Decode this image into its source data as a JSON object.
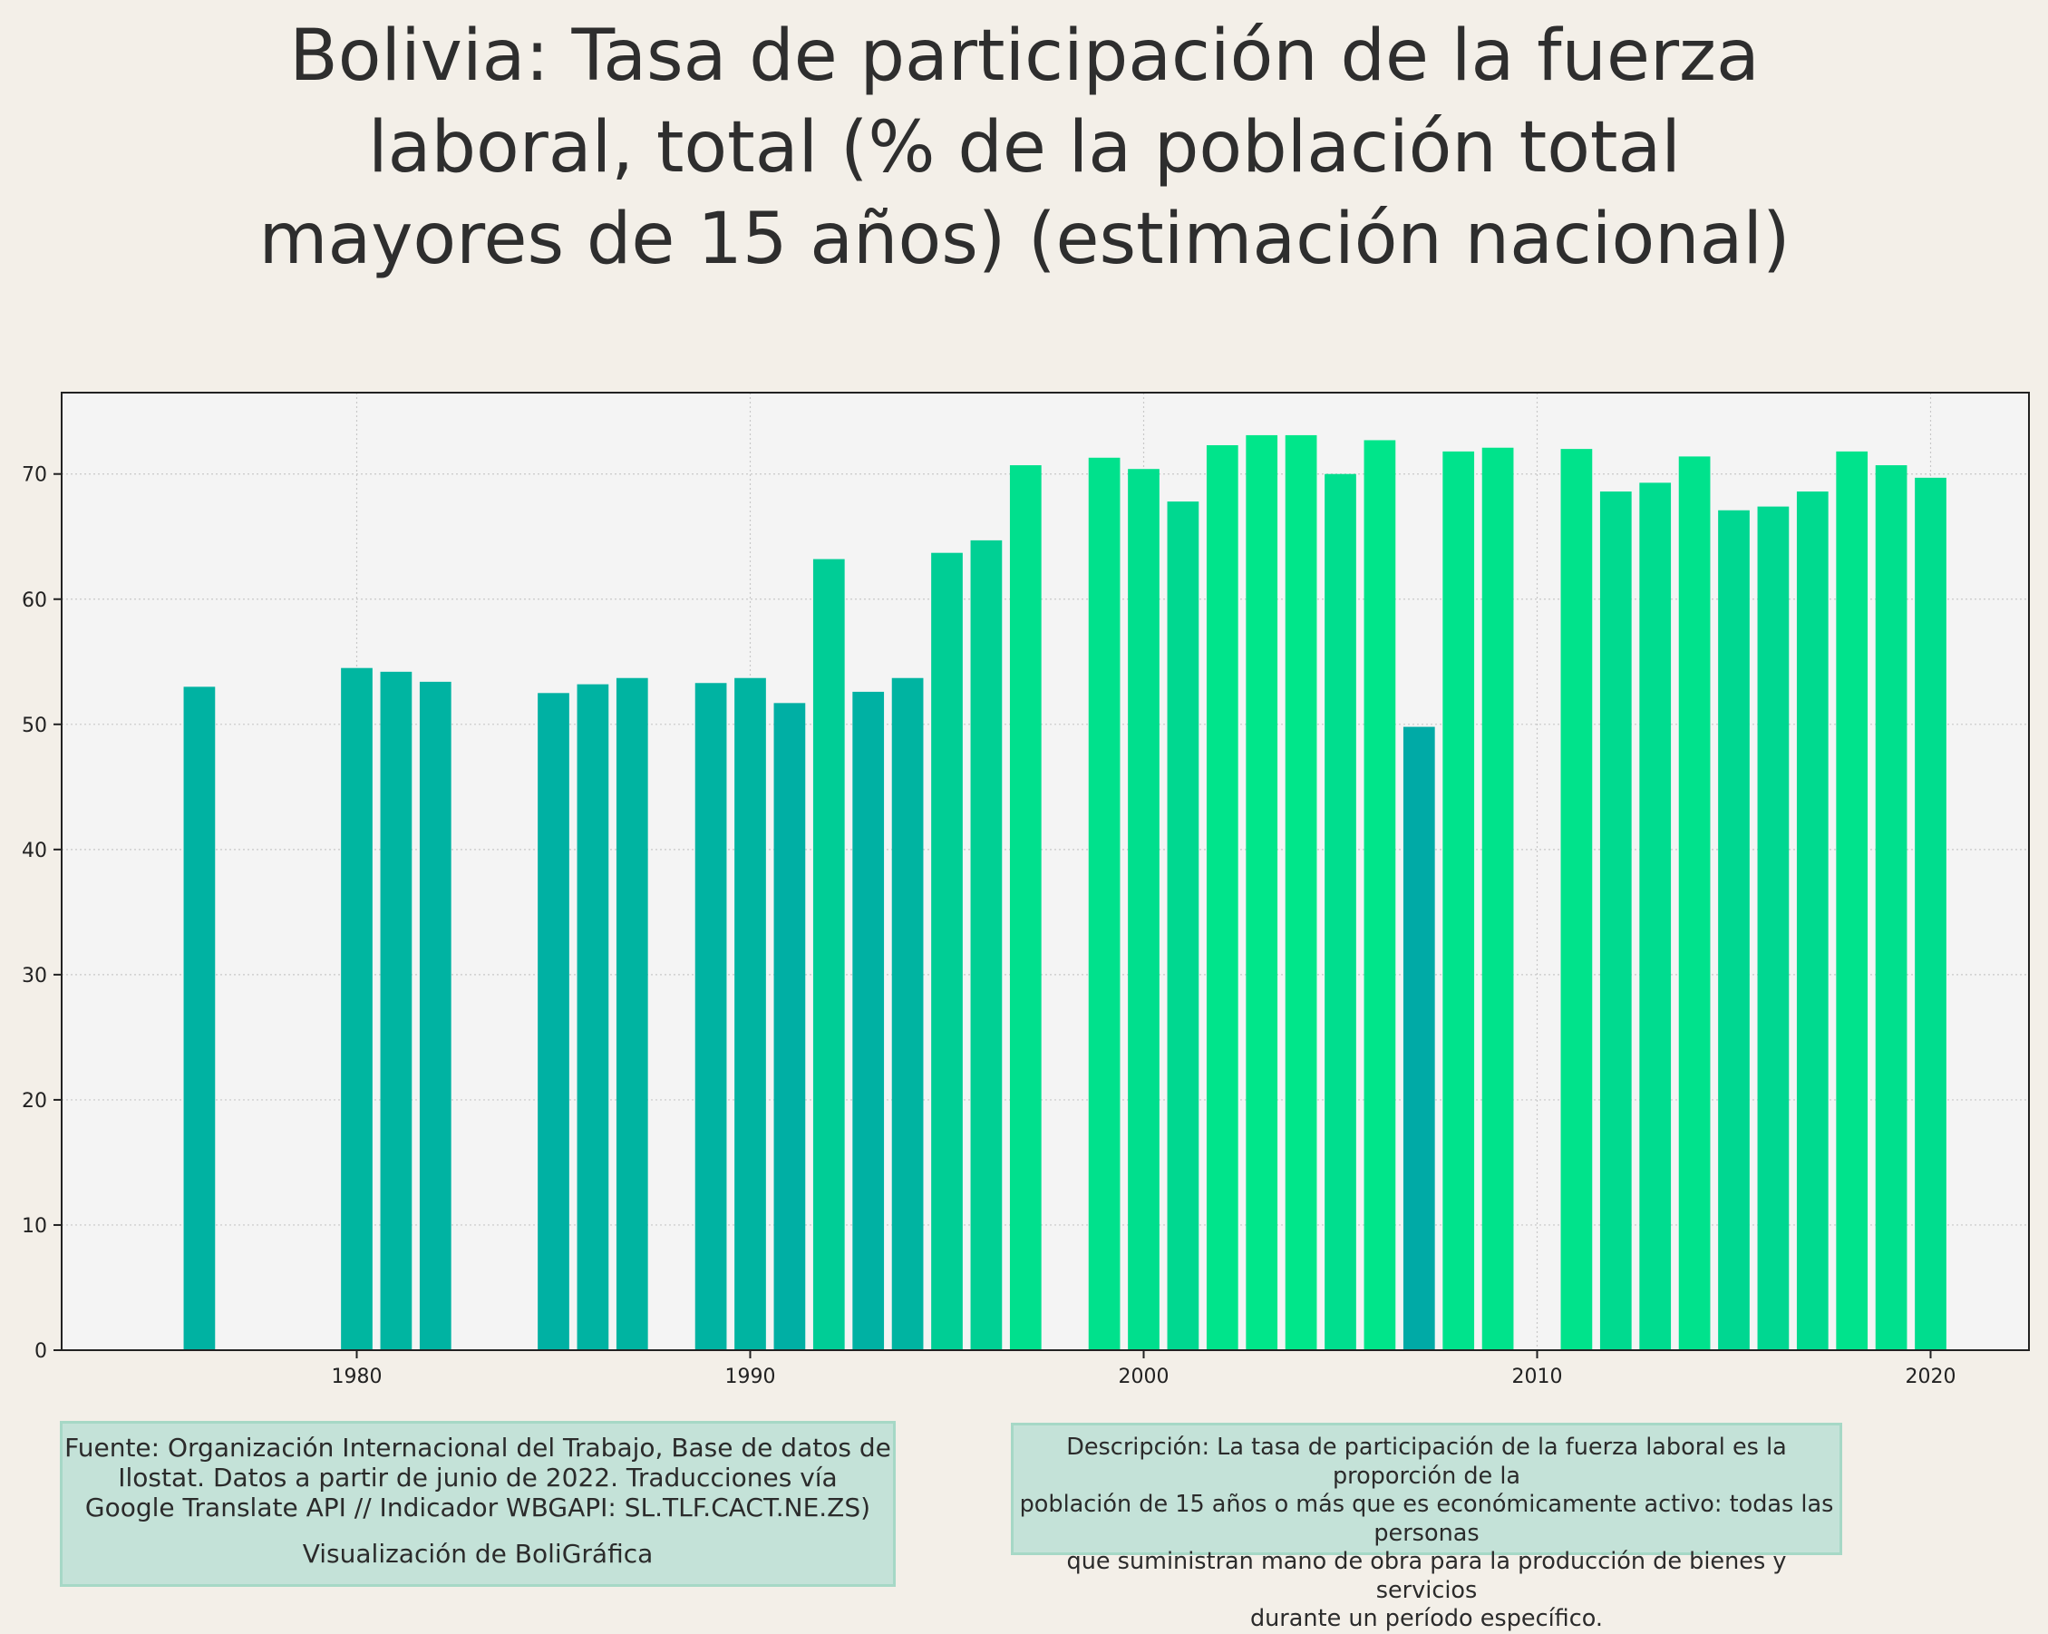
{
  "title_lines": [
    "Bolivia:  Tasa de participación de la fuerza",
    "laboral, total (% de la población total",
    "mayores de 15 años) (estimación nacional)"
  ],
  "source": {
    "lines": [
      "Fuente: Organización Internacional del Trabajo, Base de datos de",
      "Ilostat. Datos a partir de junio de 2022. Traducciones vía",
      "Google Translate API // Indicador WBGAPI: SL.TLF.CACT.NE.ZS)"
    ],
    "credit": "Visualización de BoliGráfica"
  },
  "description": {
    "lines": [
      "Descripción: La tasa de participación de la fuerza laboral es la proporción de la",
      "población de 15 años o más que es económicamente activo: todas las personas",
      "que suministran mano de obra para la producción de bienes y servicios",
      "durante un período específico."
    ]
  },
  "colors": {
    "background": "#f3efe8",
    "plot_background": "#f4f4f4",
    "bar_low": "#00aaa6",
    "bar_high": "#00e68a",
    "grid": "#c8c8c8",
    "note_background": "#c4e2d8",
    "note_border": "#a6d8c6"
  },
  "chart_data": {
    "type": "bar",
    "title": "Bolivia:  Tasa de participación de la fuerza laboral, total (% de la población total mayores de 15 años) (estimación nacional)",
    "xlabel": "",
    "ylabel": "",
    "xlim": [
      1972.5,
      2022.5
    ],
    "ylim": [
      0,
      76.5
    ],
    "x_ticks": [
      1980,
      1990,
      2000,
      2010,
      2020
    ],
    "y_ticks": [
      0,
      10,
      20,
      30,
      40,
      50,
      60,
      70
    ],
    "grid": true,
    "legend": "none",
    "color_scale": "bar color ramps from teal (low values) to bright green (high values)",
    "x": [
      1976,
      1980,
      1981,
      1982,
      1985,
      1986,
      1987,
      1989,
      1990,
      1991,
      1992,
      1993,
      1994,
      1995,
      1996,
      1997,
      1999,
      2000,
      2001,
      2002,
      2003,
      2004,
      2005,
      2006,
      2007,
      2008,
      2009,
      2011,
      2012,
      2013,
      2014,
      2015,
      2016,
      2017,
      2018,
      2019,
      2020
    ],
    "values": [
      53.0,
      54.5,
      54.2,
      53.4,
      52.5,
      53.2,
      53.7,
      53.3,
      53.7,
      51.7,
      63.2,
      52.6,
      53.7,
      63.7,
      64.7,
      70.7,
      71.3,
      70.4,
      67.8,
      72.3,
      73.1,
      73.1,
      70.0,
      72.7,
      49.8,
      71.8,
      72.1,
      72.0,
      68.6,
      69.3,
      71.4,
      67.1,
      67.4,
      68.6,
      71.8,
      70.7,
      69.7
    ]
  }
}
